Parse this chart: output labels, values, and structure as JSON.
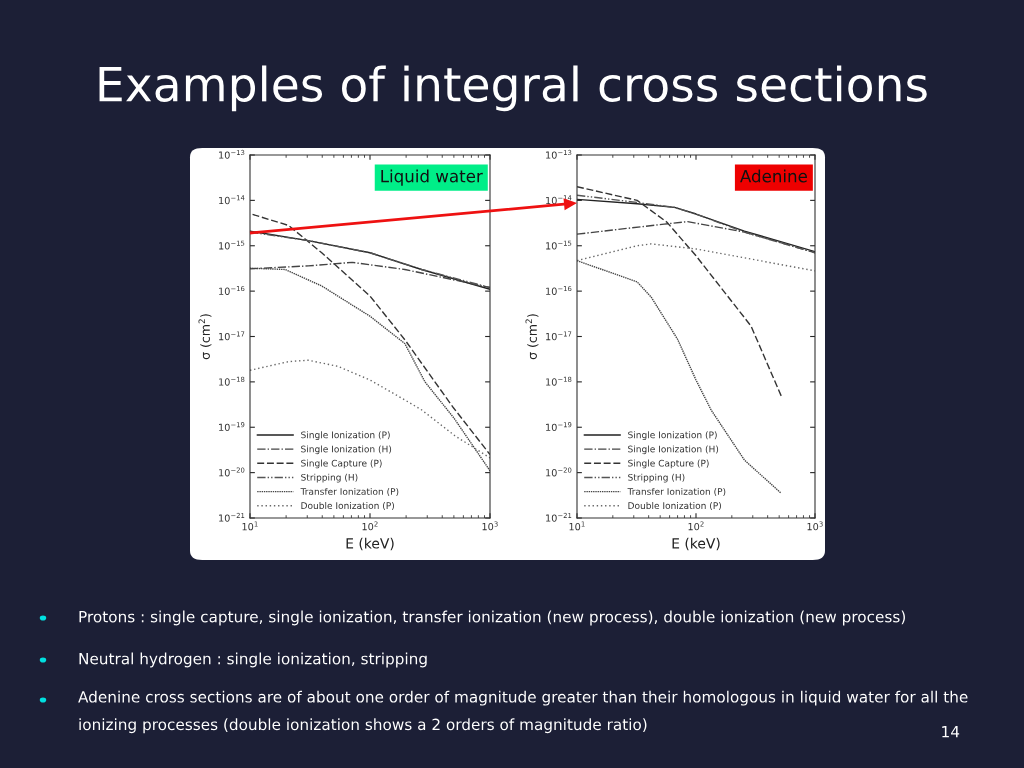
{
  "chart_data": [
    {
      "type": "line",
      "title": "Examples of integral cross sections",
      "xlabel": "E (keV)",
      "ylabel": "σ (cm$^{2}$)",
      "annotations": [
        "Liquid water",
        "Protons : single capture, single ionization, transfer ionization (new process), double ionization (new process)",
        "Neutral hydrogen : single ionization, stripping",
        "Adenine cross sections are of about one order of magnitude greater than their homologous in liquid water for all the ionizing processes (double ionization shows a 2 orders of magnitude ratio)",
        "14"
      ],
      "log": "xy",
      "xlim": [
        10,
        1000
      ],
      "ylim": [
        1e-21,
        1e-13
      ],
      "xticks": [
        {
          "value": 10,
          "label": "10$^{1}$"
        },
        {
          "value": 100,
          "label": "10$^{2}$"
        },
        {
          "value": 1000,
          "label": "10$^{3}$"
        }
      ],
      "yticks": [
        {
          "value": 1e-21,
          "label": "10$^{−21}$"
        },
        {
          "value": 1e-20,
          "label": "10$^{−20}$"
        },
        {
          "value": 1e-19,
          "label": "10$^{−19}$"
        },
        {
          "value": 1e-18,
          "label": "10$^{−18}$"
        },
        {
          "value": 1e-17,
          "label": "10$^{−17}$"
        },
        {
          "value": 1e-16,
          "label": "10$^{−16}$"
        },
        {
          "value": 1e-15,
          "label": "10$^{−15}$"
        },
        {
          "value": 1e-14,
          "label": "10$^{−14}$"
        },
        {
          "value": 1e-13,
          "label": "10$^{−13}$"
        }
      ],
      "legend": "bottom left",
      "grid": false,
      "marker": "none",
      "series": [
        {
          "name": "Single Ionization (P)",
          "color": "#222222",
          "line_style": "solid",
          "x": [
            10,
            30.6,
            100,
            269,
            1000
          ],
          "values": [
            2.1e-15,
            1.3e-15,
            7e-16,
            3e-16,
            1.1e-16
          ]
        },
        {
          "name": "Single Ionization (H)",
          "color": "#444444",
          "line_style": "dashdot",
          "x": [
            10,
            30.6,
            71,
            195,
            1000
          ],
          "values": [
            3.1e-16,
            3.6e-16,
            4.3e-16,
            3e-16,
            1.2e-16
          ]
        },
        {
          "name": "Single Capture (P)",
          "color": "#333333",
          "line_style": "dashed",
          "x": [
            10.5,
            21,
            39.6,
            100,
            195,
            490,
            1000
          ],
          "values": [
            4.9e-15,
            2.8e-15,
            7e-16,
            7.8e-17,
            8.5e-18,
            2.8e-19,
            2.5e-20
          ]
        },
        {
          "name": "Stripping (H)",
          "color": "#555555",
          "line_style": "dashdotdot",
          "x": [
            10,
            30.6,
            100,
            269,
            1000
          ],
          "values": [
            2e-15,
            1.3e-15,
            7e-16,
            3e-16,
            1.2e-16
          ]
        },
        {
          "name": "Transfer Ionization (P)",
          "color": "#444444",
          "line_style": "densedot",
          "x": [
            10,
            19.6,
            39.6,
            100,
            195,
            287,
            500,
            1000
          ],
          "values": [
            3.2e-16,
            3e-16,
            1.3e-16,
            2.8e-17,
            7e-18,
            1e-18,
            1.6e-19,
            1.1e-20
          ]
        },
        {
          "name": "Double Ionization (P)",
          "color": "#666666",
          "line_style": "dotted",
          "x": [
            10,
            21,
            30.6,
            54,
            100,
            195,
            270,
            510,
            1000
          ],
          "values": [
            1.8e-18,
            2.8e-18,
            3e-18,
            2.2e-18,
            1.1e-18,
            4e-19,
            2.4e-19,
            6.5e-20,
            2.1e-20
          ]
        }
      ]
    },
    {
      "type": "line",
      "xlabel": "E (keV)",
      "ylabel": "σ (cm$^{2}$)",
      "annotations": [
        "Adenine"
      ],
      "log": "xy",
      "xlim": [
        10,
        1000
      ],
      "ylim": [
        1e-21,
        1e-13
      ],
      "xticks": [
        {
          "value": 10,
          "label": "10$^{1}$"
        },
        {
          "value": 100,
          "label": "10$^{2}$"
        },
        {
          "value": 1000,
          "label": "10$^{3}$"
        }
      ],
      "yticks": [
        {
          "value": 1e-21,
          "label": "10$^{−21}$"
        },
        {
          "value": 1e-20,
          "label": "10$^{−20}$"
        },
        {
          "value": 1e-19,
          "label": "10$^{−19}$"
        },
        {
          "value": 1e-18,
          "label": "10$^{−18}$"
        },
        {
          "value": 1e-17,
          "label": "10$^{−17}$"
        },
        {
          "value": 1e-16,
          "label": "10$^{−16}$"
        },
        {
          "value": 1e-15,
          "label": "10$^{−15}$"
        },
        {
          "value": 1e-14,
          "label": "10$^{−14}$"
        },
        {
          "value": 1e-13,
          "label": "10$^{−13}$"
        }
      ],
      "legend": "bottom left",
      "grid": false,
      "marker": "none",
      "series": [
        {
          "name": "Single Ionization (P)",
          "color": "#222222",
          "line_style": "solid",
          "x": [
            10,
            32,
            66,
            100,
            255,
            1000
          ],
          "values": [
            1.05e-14,
            8.4e-15,
            7e-15,
            5e-15,
            2.1e-15,
            7.4e-16
          ]
        },
        {
          "name": "Single Ionization (H)",
          "color": "#444444",
          "line_style": "dashdot",
          "x": [
            10,
            54,
            85,
            255,
            1000
          ],
          "values": [
            1.8e-15,
            3e-15,
            3.4e-15,
            2e-15,
            7e-16
          ]
        },
        {
          "name": "Single Capture (P)",
          "color": "#333333",
          "line_style": "dashed",
          "x": [
            10,
            32,
            57,
            100,
            290,
            520
          ],
          "values": [
            2e-14,
            1e-14,
            3.3e-15,
            6e-16,
            1.7e-17,
            4.9e-19
          ]
        },
        {
          "name": "Stripping (H)",
          "color": "#555555",
          "line_style": "dashdotdot",
          "x": [
            10,
            32,
            66,
            100,
            255,
            1000
          ],
          "values": [
            1.3e-14,
            9e-15,
            7e-15,
            5e-15,
            2e-15,
            7e-16
          ]
        },
        {
          "name": "Transfer Ionization (P)",
          "color": "#444444",
          "line_style": "densedot",
          "x": [
            10,
            32,
            42,
            70,
            100,
            134,
            255,
            520
          ],
          "values": [
            4.7e-16,
            1.6e-16,
            7.4e-17,
            8.7e-18,
            1.1e-18,
            2.4e-19,
            1.9e-20,
            3.5e-21
          ]
        },
        {
          "name": "Double Ionization (P)",
          "color": "#666666",
          "line_style": "dotted",
          "x": [
            10,
            32,
            42,
            100,
            1000
          ],
          "values": [
            4.7e-16,
            1e-15,
            1.1e-15,
            8.5e-16,
            2.8e-16
          ]
        }
      ]
    }
  ]
}
